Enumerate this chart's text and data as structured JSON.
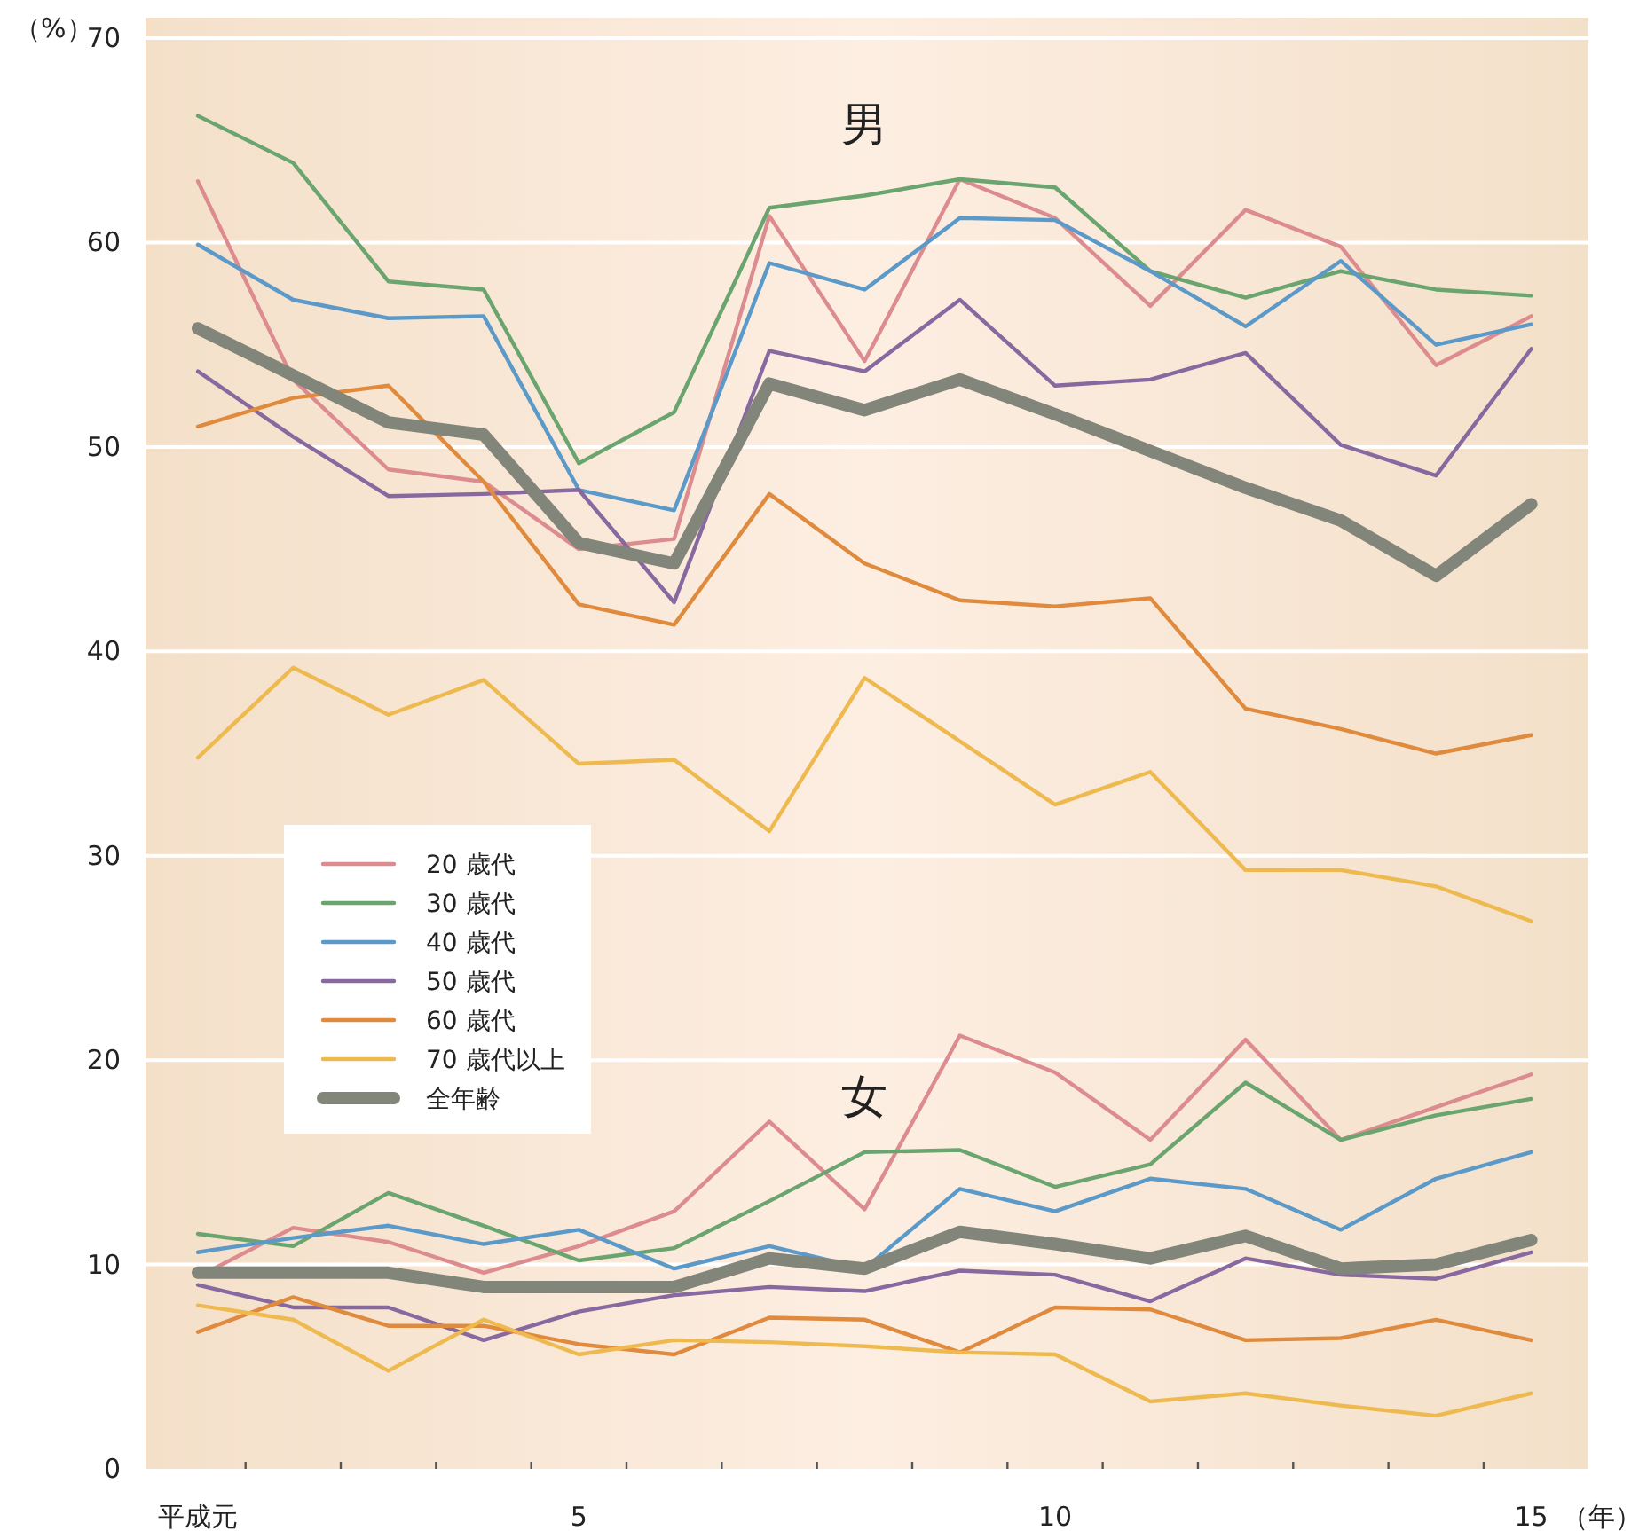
{
  "chart_data": {
    "type": "line",
    "ylabel": "（%）",
    "xlabel": "（年）",
    "x": [
      1,
      2,
      3,
      4,
      5,
      6,
      7,
      8,
      9,
      10,
      11,
      12,
      13,
      14,
      15
    ],
    "xlim": [
      0.45,
      15.6
    ],
    "ylim": [
      0,
      71
    ],
    "xticks": [
      {
        "value": 1,
        "label": "平成元"
      },
      {
        "value": 1.5,
        "label": null
      },
      {
        "value": 2.5,
        "label": null
      },
      {
        "value": 3.5,
        "label": null
      },
      {
        "value": 4.5,
        "label": null
      },
      5,
      {
        "value": 5.5,
        "label": null
      },
      {
        "value": 6.5,
        "label": null
      },
      {
        "value": 7.5,
        "label": null
      },
      {
        "value": 8.5,
        "label": null
      },
      {
        "value": 9.5,
        "label": null
      },
      10,
      {
        "value": 10.5,
        "label": null
      },
      {
        "value": 11.5,
        "label": null
      },
      {
        "value": 12.5,
        "label": null
      },
      {
        "value": 13.5,
        "label": null
      },
      {
        "value": 14.5,
        "label": null
      },
      15
    ],
    "yticks": [
      0,
      10,
      20,
      30,
      40,
      50,
      60,
      70
    ],
    "grid": "y",
    "legend": "left",
    "marker": "none",
    "line_style": "solid",
    "annotations": [
      "男",
      "女"
    ],
    "series": [
      {
        "name": "20 歳代",
        "color": "#dc8c8f",
        "values": [
          63.0,
          53.3,
          48.9,
          48.3,
          45.0,
          45.5,
          61.3,
          54.2,
          63.1,
          61.2,
          56.9,
          61.6,
          59.8,
          54.0,
          56.4
        ]
      },
      {
        "name": "30 歳代",
        "color": "#6aa46e",
        "values": [
          66.2,
          63.9,
          58.1,
          57.7,
          49.2,
          51.7,
          61.7,
          62.3,
          63.1,
          62.7,
          58.6,
          57.3,
          58.6,
          57.7,
          57.4
        ]
      },
      {
        "name": "40 歳代",
        "color": "#5b99c8",
        "values": [
          59.9,
          57.2,
          56.3,
          56.4,
          47.9,
          46.9,
          59.0,
          57.7,
          61.2,
          61.1,
          58.6,
          55.9,
          59.1,
          55.0,
          56.0
        ]
      },
      {
        "name": "50 歳代",
        "color": "#8769a0",
        "values": [
          53.7,
          50.5,
          47.6,
          47.7,
          47.9,
          42.4,
          54.7,
          53.7,
          57.2,
          53.0,
          53.3,
          54.6,
          50.1,
          48.6,
          54.8
        ]
      },
      {
        "name": "60 歳代",
        "color": "#e08a3e",
        "values": [
          51.0,
          52.4,
          53.0,
          48.3,
          42.3,
          41.3,
          47.7,
          44.3,
          42.5,
          42.2,
          42.6,
          37.2,
          36.2,
          35.0,
          35.9
        ]
      },
      {
        "name": "70 歳代以上",
        "color": "#eeb94f",
        "values": [
          34.8,
          39.2,
          36.9,
          38.6,
          34.5,
          34.7,
          31.2,
          38.7,
          35.6,
          32.5,
          34.1,
          29.3,
          29.3,
          28.5,
          26.8
        ]
      },
      {
        "name": "全年齢",
        "color": "#82857a",
        "values": [
          55.8,
          53.5,
          51.2,
          50.6,
          45.3,
          44.3,
          53.1,
          51.8,
          53.3,
          51.6,
          49.8,
          48.0,
          46.4,
          43.7,
          47.2
        ]
      },
      {
        "color": "#dc8c8f",
        "values": [
          9.4,
          11.8,
          11.1,
          9.6,
          10.9,
          12.6,
          17.0,
          12.7,
          21.2,
          19.4,
          16.1,
          21.0,
          16.1,
          17.7,
          19.3
        ]
      },
      {
        "color": "#6aa46e",
        "values": [
          11.5,
          10.9,
          13.5,
          11.9,
          10.2,
          10.8,
          13.1,
          15.5,
          15.6,
          13.8,
          14.9,
          18.9,
          16.1,
          17.3,
          18.1
        ]
      },
      {
        "color": "#5b99c8",
        "values": [
          10.6,
          11.3,
          11.9,
          11.0,
          11.7,
          9.8,
          10.9,
          9.8,
          13.7,
          12.6,
          14.2,
          13.7,
          11.7,
          14.2,
          15.5
        ]
      },
      {
        "color": "#8769a0",
        "values": [
          9.0,
          7.9,
          7.9,
          6.3,
          7.7,
          8.5,
          8.9,
          8.7,
          9.7,
          9.5,
          8.2,
          10.3,
          9.5,
          9.3,
          10.6
        ]
      },
      {
        "color": "#e08a3e",
        "values": [
          6.7,
          8.4,
          7.0,
          7.0,
          6.1,
          5.6,
          7.4,
          7.3,
          5.7,
          7.9,
          7.8,
          6.3,
          6.4,
          7.3,
          6.3
        ]
      },
      {
        "color": "#eeb94f",
        "values": [
          8.0,
          7.3,
          4.8,
          7.3,
          5.6,
          6.3,
          6.2,
          6.0,
          5.7,
          5.6,
          3.3,
          3.7,
          3.1,
          2.6,
          3.7
        ]
      },
      {
        "color": "#82857a",
        "values": [
          9.6,
          9.6,
          9.6,
          8.9,
          8.9,
          8.9,
          10.3,
          9.8,
          11.6,
          11.0,
          10.3,
          11.4,
          9.8,
          10.0,
          11.2
        ]
      }
    ]
  }
}
